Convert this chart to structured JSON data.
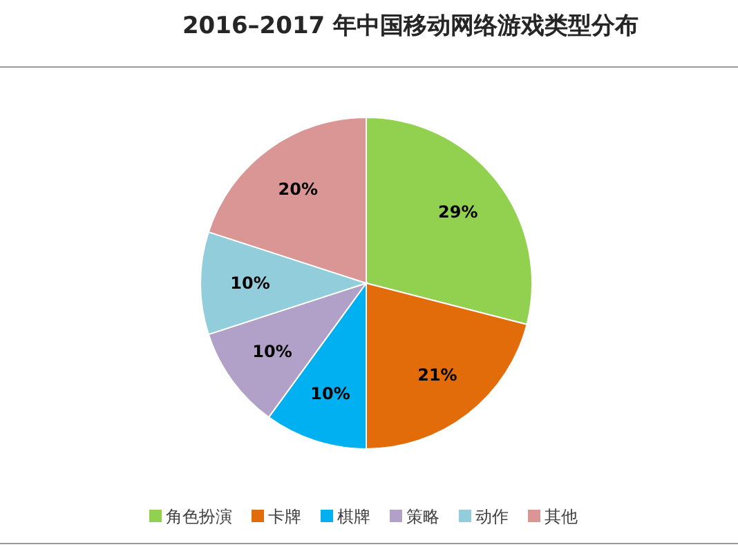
{
  "chart_data": {
    "type": "pie",
    "title": "2016–2017 年中国移动网络游戏类型分布",
    "categories": [
      "角色扮演",
      "卡牌",
      "棋牌",
      "策略",
      "动作",
      "其他"
    ],
    "values": [
      29,
      21,
      10,
      10,
      10,
      20
    ],
    "colors": [
      "#92d050",
      "#e36c0a",
      "#00b0f0",
      "#b1a0c7",
      "#92cddc",
      "#da9694"
    ],
    "value_labels": [
      "29%",
      "21%",
      "10%",
      "10%",
      "10%",
      "20%"
    ],
    "legend": "bottom"
  }
}
